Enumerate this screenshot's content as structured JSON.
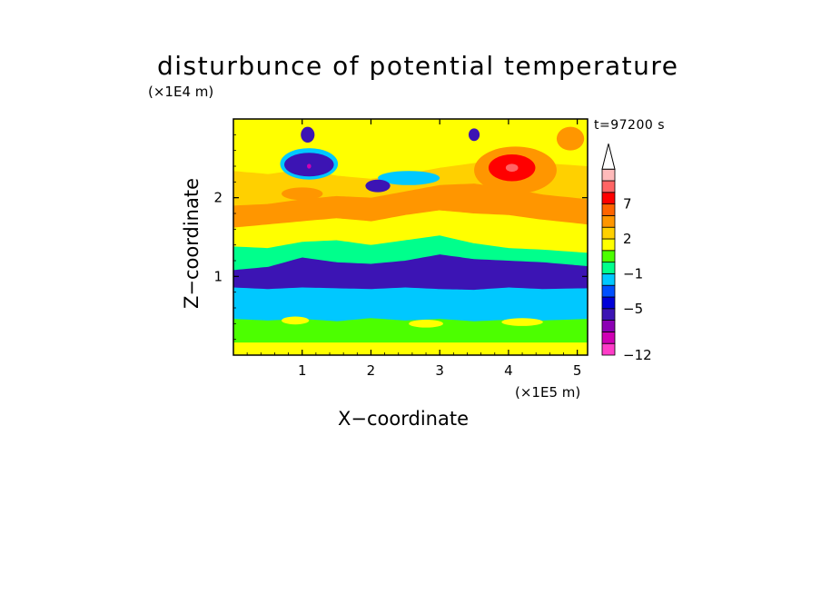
{
  "chart_data": {
    "type": "heatmap",
    "title": "disturbunce of potential temperature",
    "xlabel": "X−coordinate",
    "ylabel": "Z−coordinate",
    "x_unit": "(×1E5 m)",
    "y_unit": "(×1E4 m)",
    "time_label": "t=97200 s",
    "xlim": [
      0,
      5.15
    ],
    "ylim": [
      0,
      3.0
    ],
    "x_ticks": [
      1,
      2,
      3,
      4,
      5
    ],
    "y_ticks": [
      1,
      2
    ],
    "x_tick_labels": [
      "1",
      "2",
      "3",
      "4",
      "5"
    ],
    "y_tick_labels": [
      "1",
      "2"
    ],
    "colorbar": {
      "labels": [
        "7",
        "2",
        "−1",
        "−5",
        "−12"
      ],
      "label_values": [
        7,
        2,
        -1,
        -5,
        -12
      ],
      "colors": [
        "#ff3cc8",
        "#d000b4",
        "#8c00b4",
        "#3c14b4",
        "#0000d8",
        "#0050ff",
        "#00c8ff",
        "#00ff8c",
        "#4cff00",
        "#ffff00",
        "#ffd000",
        "#ff9600",
        "#ff6400",
        "#ff0000",
        "#ff6464",
        "#ffbaba"
      ],
      "extend": "max"
    },
    "layers": [
      {
        "x": [
          0,
          0.5,
          1.0,
          1.5,
          2.0,
          2.5,
          3.0,
          3.5,
          4.0,
          4.5,
          5.15
        ],
        "z": [
          0.16,
          0.16,
          0.16,
          0.16,
          0.16,
          0.16,
          0.16,
          0.16,
          0.16,
          0.16,
          0.16
        ],
        "value": 1.5
      },
      {
        "x": [
          0,
          0.5,
          1.0,
          1.5,
          2.0,
          2.5,
          3.0,
          3.5,
          4.0,
          4.5,
          5.15
        ],
        "z": [
          0.46,
          0.44,
          0.46,
          0.43,
          0.47,
          0.44,
          0.46,
          0.43,
          0.45,
          0.44,
          0.46
        ],
        "value": 0.0
      },
      {
        "x": [
          0,
          0.5,
          1.0,
          1.5,
          2.0,
          2.5,
          3.0,
          3.5,
          4.0,
          4.5,
          5.15
        ],
        "z": [
          0.86,
          0.84,
          0.86,
          0.85,
          0.84,
          0.86,
          0.84,
          0.83,
          0.86,
          0.84,
          0.85
        ],
        "value": -2.5
      },
      {
        "x": [
          0,
          0.5,
          1.0,
          1.5,
          2.0,
          2.5,
          3.0,
          3.5,
          4.0,
          4.5,
          5.15
        ],
        "z": [
          1.08,
          1.12,
          1.24,
          1.18,
          1.16,
          1.2,
          1.28,
          1.22,
          1.2,
          1.18,
          1.13
        ],
        "value": -5.5
      },
      {
        "x": [
          0,
          0.5,
          1.0,
          1.5,
          2.0,
          2.5,
          3.0,
          3.5,
          4.0,
          4.5,
          5.15
        ],
        "z": [
          1.38,
          1.36,
          1.44,
          1.46,
          1.4,
          1.46,
          1.52,
          1.42,
          1.36,
          1.34,
          1.3
        ],
        "value": -0.5
      },
      {
        "x": [
          0,
          0.5,
          1.0,
          1.5,
          2.0,
          2.5,
          3.0,
          3.5,
          4.0,
          4.5,
          5.15
        ],
        "z": [
          1.62,
          1.66,
          1.7,
          1.74,
          1.7,
          1.78,
          1.84,
          1.8,
          1.78,
          1.72,
          1.66
        ],
        "value": 1.5
      },
      {
        "x": [
          0,
          0.5,
          1.0,
          1.5,
          2.0,
          2.5,
          3.0,
          3.5,
          4.0,
          4.5,
          5.15
        ],
        "z": [
          1.9,
          1.92,
          1.98,
          2.02,
          2.0,
          2.08,
          2.16,
          2.18,
          2.12,
          2.04,
          1.98
        ],
        "value": 3.5
      },
      {
        "x": [
          0,
          0.5,
          1.0,
          1.5,
          2.0,
          2.5,
          3.0,
          3.5,
          4.0,
          4.5,
          5.15
        ],
        "z": [
          2.34,
          2.3,
          2.36,
          2.28,
          2.24,
          2.3,
          2.38,
          2.44,
          2.5,
          2.44,
          2.4
        ],
        "value": 2.0
      },
      {
        "x": [
          0,
          0.5,
          1.0,
          1.5,
          2.0,
          2.5,
          3.0,
          3.5,
          4.0,
          4.5,
          5.15
        ],
        "z": [
          2.74,
          2.72,
          2.76,
          2.7,
          2.74,
          2.72,
          2.7,
          2.76,
          2.74,
          2.72,
          2.76
        ],
        "value": 1.0
      }
    ],
    "blobs": [
      {
        "x": 1.1,
        "z": 2.43,
        "rx": 0.42,
        "rz": 0.2,
        "value": -3.0
      },
      {
        "x": 1.1,
        "z": 2.42,
        "rx": 0.36,
        "rz": 0.15,
        "value": -6.0
      },
      {
        "x": 1.1,
        "z": 2.4,
        "rx": 0.03,
        "rz": 0.03,
        "value": -10.0
      },
      {
        "x": 1.08,
        "z": 2.8,
        "rx": 0.1,
        "rz": 0.1,
        "value": -6.0
      },
      {
        "x": 2.55,
        "z": 2.25,
        "rx": 0.45,
        "rz": 0.09,
        "value": -3.0
      },
      {
        "x": 2.1,
        "z": 2.15,
        "rx": 0.18,
        "rz": 0.08,
        "value": -6.0
      },
      {
        "x": 3.5,
        "z": 2.8,
        "rx": 0.08,
        "rz": 0.08,
        "value": -6.0
      },
      {
        "x": 4.1,
        "z": 2.35,
        "rx": 0.6,
        "rz": 0.3,
        "value": 4.5
      },
      {
        "x": 4.05,
        "z": 2.38,
        "rx": 0.34,
        "rz": 0.17,
        "value": 7.5
      },
      {
        "x": 4.05,
        "z": 2.38,
        "rx": 0.09,
        "rz": 0.05,
        "value": 10.0
      },
      {
        "x": 4.9,
        "z": 2.75,
        "rx": 0.2,
        "rz": 0.15,
        "value": 4.5
      },
      {
        "x": 1.0,
        "z": 2.05,
        "rx": 0.3,
        "rz": 0.08,
        "value": 4.5
      },
      {
        "x": 3.2,
        "z": 1.95,
        "rx": 0.5,
        "rz": 0.12,
        "value": 4.5
      },
      {
        "x": 2.0,
        "z": 1.82,
        "rx": 0.4,
        "rz": 0.1,
        "value": 4.5
      },
      {
        "x": 0.9,
        "z": 0.44,
        "rx": 0.2,
        "rz": 0.05,
        "value": 1.5
      },
      {
        "x": 2.8,
        "z": 0.4,
        "rx": 0.25,
        "rz": 0.05,
        "value": 1.5
      },
      {
        "x": 4.2,
        "z": 0.42,
        "rx": 0.3,
        "rz": 0.05,
        "value": 1.5
      }
    ]
  }
}
